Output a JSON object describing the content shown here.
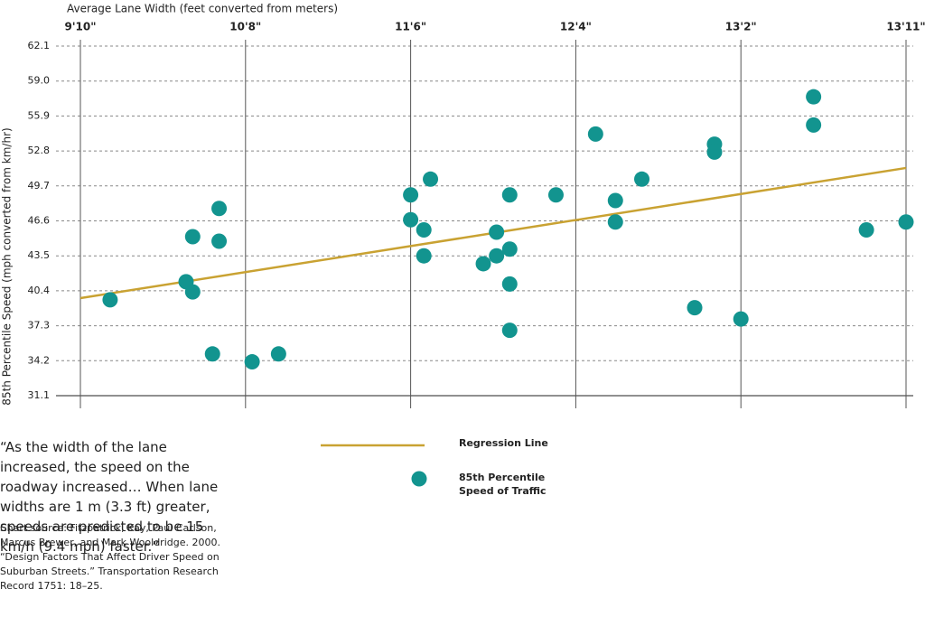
{
  "chart_data": {
    "type": "scatter",
    "x_label": "Average Lane Width (feet converted from meters)",
    "y_label": "85th Percentile Speed (mph converted from km/hr)",
    "xlim": [
      3.0,
      4.25
    ],
    "xticks": [
      {
        "value": 3.0,
        "label": "9'10\""
      },
      {
        "value": 3.25,
        "label": "10'8\""
      },
      {
        "value": 3.5,
        "label": "11'6\""
      },
      {
        "value": 3.75,
        "label": "12'4\""
      },
      {
        "value": 4.0,
        "label": "13'2\""
      },
      {
        "value": 4.25,
        "label": "13'11\""
      }
    ],
    "ylim": [
      31.1,
      62.1
    ],
    "yticks": [
      31.1,
      34.2,
      37.3,
      40.4,
      43.5,
      46.6,
      49.7,
      52.8,
      55.9,
      {
        "value": 59,
        "label": "59.0"
      },
      62.1
    ],
    "grid": true,
    "series": [
      {
        "name": "Regression Line",
        "color": "#c9a232",
        "style": "line",
        "x": [
          3.0,
          4.25
        ],
        "values": [
          39.75,
          51.29
        ]
      },
      {
        "name": "85th Percentile Speed of Traffic",
        "color": "#12948f",
        "style": "marker",
        "x": [
          3.045,
          3.16,
          3.17,
          3.17,
          3.21,
          3.21,
          3.2,
          3.26,
          3.3,
          3.5,
          3.5,
          3.52,
          3.53,
          3.52,
          3.61,
          3.63,
          3.63,
          3.65,
          3.65,
          3.65,
          3.65,
          3.72,
          3.78,
          3.81,
          3.81,
          3.85,
          3.93,
          3.96,
          3.96,
          4.0,
          4.11,
          4.11,
          4.19,
          4.25
        ],
        "values": [
          39.6,
          41.2,
          40.3,
          45.2,
          47.7,
          44.8,
          34.8,
          34.1,
          34.8,
          48.9,
          46.7,
          45.8,
          50.3,
          43.5,
          42.8,
          45.6,
          43.5,
          48.9,
          44.1,
          41.0,
          36.9,
          48.9,
          54.3,
          48.4,
          46.5,
          50.3,
          38.9,
          53.4,
          52.7,
          37.9,
          57.6,
          55.1,
          45.8,
          46.5
        ]
      }
    ],
    "quote": "“As the width of the lane increased, the speed on the roadway increased… When lane widths are 1 m (3.3 ft) greater, speeds are predicted to be 15 km/h (9.4 mph) faster.”",
    "source": "Chart source: Fitzpatrick, Kay, Paul Carlson, Marcus Brewer, and Mark Wooldridge. 2000. “Design Factors That Affect Driver Speed on Suburban Streets.” Transportation Research Record 1751: 18–25."
  }
}
